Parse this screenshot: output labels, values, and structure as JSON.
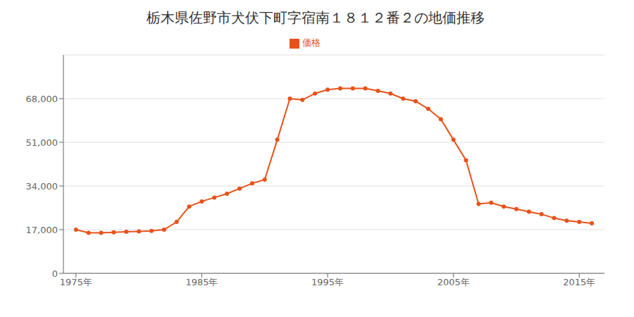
{
  "chart_data": {
    "type": "line",
    "title": "栃木県佐野市犬伏下町字宿南１８１２番２の地価推移",
    "x": [
      1975,
      1976,
      1977,
      1978,
      1979,
      1980,
      1981,
      1982,
      1983,
      1984,
      1985,
      1986,
      1987,
      1988,
      1989,
      1990,
      1991,
      1992,
      1993,
      1994,
      1995,
      1996,
      1997,
      1998,
      1999,
      2000,
      2001,
      2002,
      2003,
      2004,
      2005,
      2006,
      2007,
      2008,
      2009,
      2010,
      2011,
      2012,
      2013,
      2014,
      2015,
      2016
    ],
    "series": [
      {
        "name": "価格",
        "color": "#e8521a",
        "marker": "circle",
        "values": [
          17000,
          15800,
          15800,
          16000,
          16200,
          16300,
          16500,
          17000,
          20000,
          26000,
          28000,
          29500,
          31000,
          33000,
          35000,
          36500,
          52000,
          68000,
          67500,
          70000,
          71500,
          72000,
          72000,
          72000,
          71000,
          70000,
          68000,
          67000,
          64000,
          60000,
          52000,
          44000,
          27000,
          27500,
          26000,
          25000,
          24000,
          23000,
          21500,
          20500,
          20000,
          19500
        ]
      }
    ],
    "xlim": [
      1974,
      2017
    ],
    "xticks": [
      {
        "value": 1975,
        "label": "1975年"
      },
      {
        "value": 1985,
        "label": "1985年"
      },
      {
        "value": 1995,
        "label": "1995年"
      },
      {
        "value": 2005,
        "label": "2005年"
      },
      {
        "value": 2015,
        "label": "2015年"
      }
    ],
    "ylim": [
      0,
      85000
    ],
    "yticks": [
      0,
      {
        "value": 17000,
        "label": "17,000"
      },
      {
        "value": 34000,
        "label": "34,000"
      },
      {
        "value": 51000,
        "label": "51,000"
      },
      {
        "value": 68000,
        "label": "68,000"
      }
    ],
    "grid": true,
    "legend": "top"
  }
}
